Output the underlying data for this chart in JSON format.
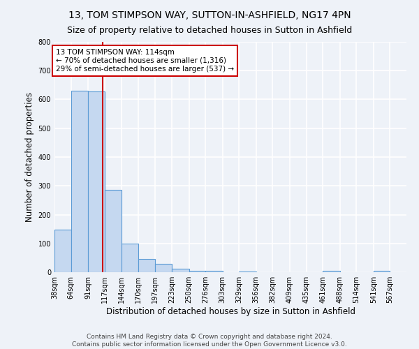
{
  "title": "13, TOM STIMPSON WAY, SUTTON-IN-ASHFIELD, NG17 4PN",
  "subtitle": "Size of property relative to detached houses in Sutton in Ashfield",
  "xlabel": "Distribution of detached houses by size in Sutton in Ashfield",
  "ylabel": "Number of detached properties",
  "bin_labels": [
    "38sqm",
    "64sqm",
    "91sqm",
    "117sqm",
    "144sqm",
    "170sqm",
    "197sqm",
    "223sqm",
    "250sqm",
    "276sqm",
    "303sqm",
    "329sqm",
    "356sqm",
    "382sqm",
    "409sqm",
    "435sqm",
    "461sqm",
    "488sqm",
    "514sqm",
    "541sqm",
    "567sqm"
  ],
  "bin_values": [
    148,
    630,
    628,
    285,
    100,
    46,
    30,
    13,
    5,
    5,
    0,
    3,
    0,
    0,
    0,
    0,
    5,
    0,
    0,
    5,
    0
  ],
  "bin_edges": [
    38,
    64,
    91,
    117,
    144,
    170,
    197,
    223,
    250,
    276,
    303,
    329,
    356,
    382,
    409,
    435,
    461,
    488,
    514,
    541,
    567,
    593
  ],
  "property_size": 114,
  "bar_color": "#c5d8f0",
  "bar_edge_color": "#5b9bd5",
  "red_line_color": "#cc0000",
  "annotation_box_edge": "#cc0000",
  "annotation_text_line1": "13 TOM STIMPSON WAY: 114sqm",
  "annotation_text_line2": "← 70% of detached houses are smaller (1,316)",
  "annotation_text_line3": "29% of semi-detached houses are larger (537) →",
  "ylim": [
    0,
    800
  ],
  "yticks": [
    0,
    100,
    200,
    300,
    400,
    500,
    600,
    700,
    800
  ],
  "footer_line1": "Contains HM Land Registry data © Crown copyright and database right 2024.",
  "footer_line2": "Contains public sector information licensed under the Open Government Licence v3.0.",
  "background_color": "#eef2f8",
  "grid_color": "#ffffff",
  "title_fontsize": 10,
  "subtitle_fontsize": 9,
  "axis_label_fontsize": 8.5,
  "tick_fontsize": 7,
  "footer_fontsize": 6.5,
  "annotation_fontsize": 7.5
}
